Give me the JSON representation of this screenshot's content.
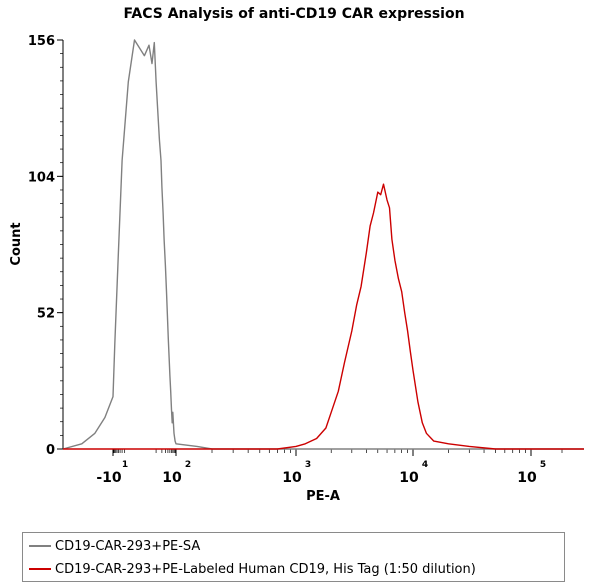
{
  "chart_data": {
    "type": "line",
    "title": "FACS Analysis of anti-CD19 CAR expression",
    "xlabel": "PE-A",
    "ylabel": "Count",
    "xscale": "biexponential",
    "xlim": [
      -30,
      200000
    ],
    "ylim": [
      0,
      156
    ],
    "yticks": [
      0,
      52,
      104,
      156
    ],
    "xticks": [
      {
        "value": -10,
        "base": "-10",
        "exp": "1"
      },
      {
        "value": 100,
        "base": "10",
        "exp": "2"
      },
      {
        "value": 1000,
        "base": "10",
        "exp": "3"
      },
      {
        "value": 10000,
        "base": "10",
        "exp": "4"
      },
      {
        "value": 100000,
        "base": "10",
        "exp": "5"
      }
    ],
    "legend_position": "bottom",
    "series": [
      {
        "name": "CD19-CAR-293+PE-SA",
        "color": "#808080",
        "x": [
          -30,
          -20,
          -15,
          -12,
          -10,
          -8,
          -5,
          -3,
          -1,
          0,
          2,
          4,
          6,
          8,
          10,
          12,
          15,
          18,
          20,
          23,
          26,
          30,
          34,
          38,
          42,
          46,
          50,
          55,
          60,
          65,
          70,
          80,
          90,
          100,
          150,
          200,
          400,
          1000,
          100000,
          200000
        ],
        "y": [
          0,
          2,
          6,
          12,
          20,
          40,
          75,
          110,
          140,
          156,
          150,
          154,
          147,
          155,
          140,
          130,
          118,
          110,
          100,
          90,
          80,
          70,
          60,
          50,
          42,
          35,
          28,
          22,
          15,
          10,
          14,
          6,
          3,
          2,
          1,
          0,
          0,
          0,
          0,
          0
        ]
      },
      {
        "name": "CD19-CAR-293+PE-Labeled Human CD19, His Tag (1:50 dilution)",
        "color": "#cc0000",
        "x": [
          -30,
          700,
          1000,
          1200,
          1500,
          1800,
          2000,
          2300,
          2600,
          3000,
          3300,
          3600,
          4000,
          4300,
          4600,
          5000,
          5300,
          5600,
          6000,
          6300,
          6600,
          7000,
          7500,
          8000,
          8500,
          9000,
          9500,
          10000,
          11000,
          12000,
          13000,
          15000,
          20000,
          30000,
          50000,
          200000
        ],
        "y": [
          0,
          0,
          1,
          2,
          4,
          8,
          14,
          22,
          33,
          45,
          55,
          62,
          75,
          85,
          90,
          98,
          97,
          101,
          95,
          92,
          80,
          72,
          65,
          60,
          52,
          45,
          37,
          30,
          18,
          10,
          6,
          3,
          2,
          1,
          0,
          0
        ]
      }
    ]
  }
}
